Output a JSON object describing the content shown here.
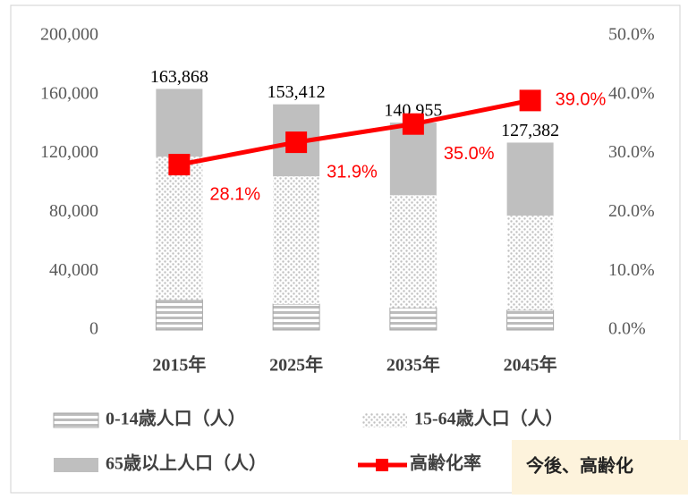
{
  "chart_data": {
    "type": "stacked_bar_line",
    "categories": [
      "2015年",
      "2025年",
      "2035年",
      "2045年"
    ],
    "series": [
      {
        "name": "0-14歳人口（人）",
        "color": "#a6a6a6",
        "values": [
          20500,
          17600,
          15000,
          13500
        ]
      },
      {
        "name": "15-64歳人口（人）",
        "color": "#c8c8c8",
        "values": [
          97321,
          86874,
          76621,
          64203
        ]
      },
      {
        "name": "65歳以上人口（人）",
        "color": "#bfbfbf",
        "values": [
          46047,
          48938,
          49334,
          49679
        ]
      },
      {
        "name": "高齢化率",
        "color": "#ff0000",
        "axis": "y2",
        "values": [
          28.1,
          31.9,
          35.0,
          39.0
        ],
        "value_labels": [
          "28.1%",
          "31.9%",
          "35.0%",
          "39.0%"
        ]
      }
    ],
    "totals": [
      163868,
      153412,
      140955,
      127382
    ],
    "total_labels": [
      "163,868",
      "153,412",
      "140,955",
      "127,382"
    ],
    "ylim": [
      0,
      200000
    ],
    "yticks": [
      0,
      {
        "value": 40000,
        "label": "40,000"
      },
      {
        "value": 80000,
        "label": "80,000"
      },
      {
        "value": 120000,
        "label": "120,000"
      },
      {
        "value": 160000,
        "label": "160,000"
      },
      {
        "value": 200000,
        "label": "200,000"
      }
    ],
    "y2lim": [
      0,
      50
    ],
    "y2ticks": [
      {
        "value": 0,
        "label": "0.0%"
      },
      {
        "value": 10,
        "label": "10.0%"
      },
      {
        "value": 20,
        "label": "20.0%"
      },
      {
        "value": 30,
        "label": "30.0%"
      },
      {
        "value": 40,
        "label": "40.0%"
      },
      {
        "value": 50,
        "label": "50.0%"
      }
    ],
    "annotation": "今後、高齢化"
  }
}
